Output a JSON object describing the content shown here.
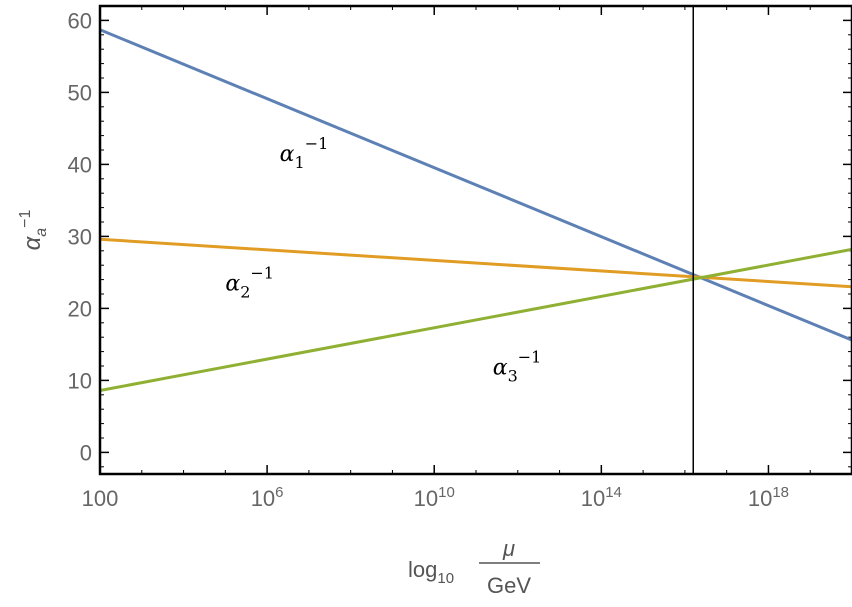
{
  "chart_data": {
    "type": "line",
    "xlabel": {
      "prefix": "log",
      "subscript": "10",
      "numerator": "μ",
      "denominator": "GeV"
    },
    "ylabel": {
      "base": "α",
      "subscript": "a",
      "superscript": "−1"
    },
    "x_scale": "log10",
    "xlim": [
      2,
      20
    ],
    "ylim": [
      -3,
      62
    ],
    "x_ticks": [
      {
        "value": 2,
        "base": "100",
        "exp": ""
      },
      {
        "value": 6,
        "base": "10",
        "exp": "6"
      },
      {
        "value": 10,
        "base": "10",
        "exp": "10"
      },
      {
        "value": 14,
        "base": "10",
        "exp": "14"
      },
      {
        "value": 18,
        "base": "10",
        "exp": "18"
      }
    ],
    "y_ticks": [
      0,
      10,
      20,
      30,
      40,
      50,
      60
    ],
    "vertical_line": {
      "x": 16.2
    },
    "series": [
      {
        "name_base": "α",
        "name_sub": "1",
        "name_sup": "−1",
        "color": "#5e81b5",
        "x": [
          2,
          20
        ],
        "y": [
          58.7,
          15.6
        ]
      },
      {
        "name_base": "α",
        "name_sub": "2",
        "name_sup": "−1",
        "color": "#e19c24",
        "x": [
          2,
          20
        ],
        "y": [
          29.6,
          23.0
        ]
      },
      {
        "name_base": "α",
        "name_sub": "3",
        "name_sup": "−1",
        "color": "#8fb032",
        "x": [
          2,
          20
        ],
        "y": [
          8.6,
          28.2
        ]
      }
    ]
  }
}
